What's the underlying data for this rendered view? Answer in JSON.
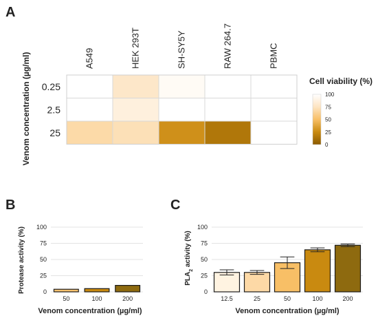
{
  "panel_labels": {
    "a": "A",
    "b": "B",
    "c": "C"
  },
  "chart_data": [
    {
      "type": "heatmap",
      "columns": [
        "A549",
        "HEK 293T",
        "SH-SY5Y",
        "RAW 264.7",
        "PBMC"
      ],
      "rows": [
        "0.25",
        "2.5",
        "25"
      ],
      "ylabel": "Venom concentration (µg/ml)",
      "values": [
        [
          100,
          78,
          96,
          100,
          100
        ],
        [
          100,
          86,
          100,
          100,
          100
        ],
        [
          68,
          72,
          28,
          15,
          100
        ]
      ],
      "colorbar": {
        "title": "Cell viability (%)",
        "ticks": [
          "100",
          "75",
          "50",
          "25",
          "0"
        ],
        "range": [
          0,
          100
        ],
        "colors": [
          "#8b5a00",
          "#c98a10",
          "#f8bf66",
          "#fde4c2",
          "#ffffff"
        ]
      }
    },
    {
      "type": "bar",
      "categories": [
        "50",
        "100",
        "200"
      ],
      "values": [
        4,
        5,
        10
      ],
      "colors": [
        "#fbc370",
        "#c98a10",
        "#8e6a0f"
      ],
      "ylabel": "Protease activity (%)",
      "xlabel": "Venom concentration (µg/ml)",
      "ylim": [
        0,
        100
      ],
      "yticks": [
        "0",
        "25",
        "50",
        "75",
        "100"
      ],
      "grid": true
    },
    {
      "type": "bar",
      "categories": [
        "12.5",
        "25",
        "50",
        "100",
        "200"
      ],
      "values": [
        30,
        30,
        45,
        65,
        72
      ],
      "errors": [
        4,
        3,
        9,
        3,
        2
      ],
      "colors": [
        "#fff3e1",
        "#fdd9a6",
        "#f8bf66",
        "#c98a10",
        "#8e6a0f"
      ],
      "ylabel": "PLA2 activity (%)",
      "xlabel": "Venom concentration (µg/ml)",
      "ylim": [
        0,
        100
      ],
      "yticks": [
        "0",
        "25",
        "50",
        "75",
        "100"
      ],
      "grid": true
    }
  ]
}
